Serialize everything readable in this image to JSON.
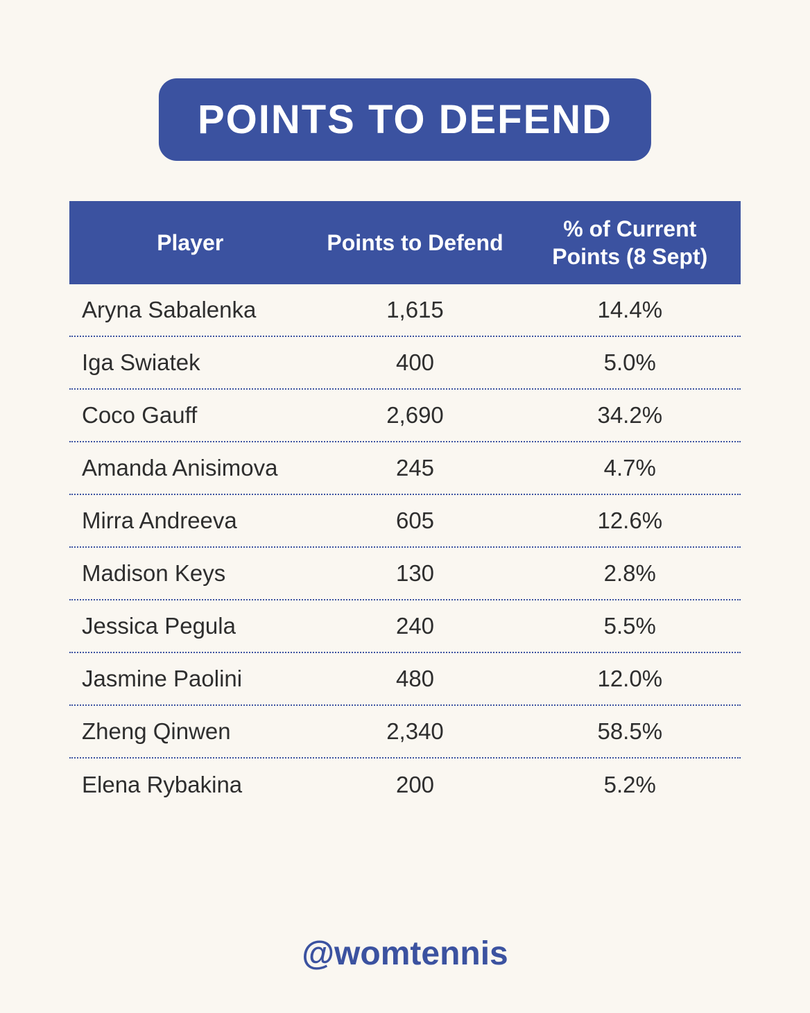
{
  "title": "POINTS TO DEFEND",
  "footer": {
    "handle": "@womtennis"
  },
  "colors": {
    "primary_blue": "#3b52a0",
    "background": "#faf7f1",
    "text": "#2e2e2e",
    "header_text": "#ffffff"
  },
  "chart_data": {
    "type": "table",
    "title": "POINTS TO DEFEND",
    "columns": [
      "Player",
      "Points to Defend",
      "% of Current Points (8 Sept)"
    ],
    "rows": [
      {
        "player": "Aryna Sabalenka",
        "points": "1,615",
        "percent": "14.4%"
      },
      {
        "player": "Iga Swiatek",
        "points": "400",
        "percent": "5.0%"
      },
      {
        "player": "Coco Gauff",
        "points": "2,690",
        "percent": "34.2%"
      },
      {
        "player": "Amanda Anisimova",
        "points": "245",
        "percent": "4.7%"
      },
      {
        "player": "Mirra Andreeva",
        "points": "605",
        "percent": "12.6%"
      },
      {
        "player": "Madison Keys",
        "points": "130",
        "percent": "2.8%"
      },
      {
        "player": "Jessica Pegula",
        "points": "240",
        "percent": "5.5%"
      },
      {
        "player": "Jasmine Paolini",
        "points": "480",
        "percent": "12.0%"
      },
      {
        "player": "Zheng Qinwen",
        "points": "2,340",
        "percent": "58.5%"
      },
      {
        "player": "Elena Rybakina",
        "points": "200",
        "percent": "5.2%"
      }
    ]
  }
}
